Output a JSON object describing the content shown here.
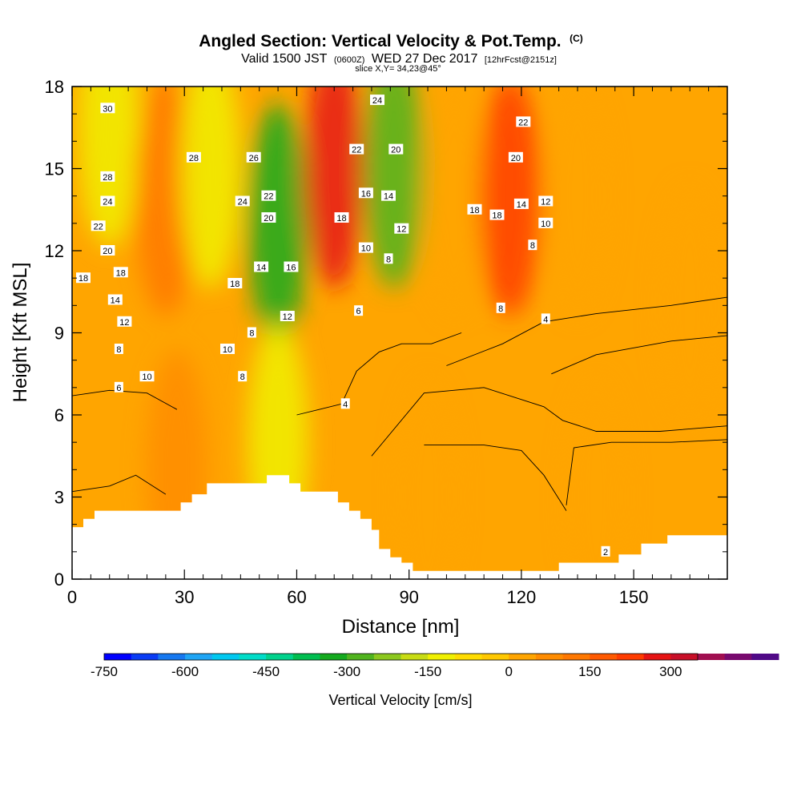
{
  "chart_data": {
    "type": "heatmap",
    "title": "Angled Section: Vertical Velocity & Pot.Temp.",
    "title_tag": "(C)",
    "subtitle": {
      "part1": "Valid 1500 JST",
      "part2": "(0600Z)",
      "part3": "WED 27 Dec 2017",
      "part4": "[12hrFcst@2151z]"
    },
    "slice_label": "slice X,Y= 34,23@45°",
    "xlabel": "Distance [nm]",
    "ylabel": "Height [Kft MSL]",
    "xlim": [
      0,
      175
    ],
    "ylim": [
      0,
      18
    ],
    "x_ticks": [
      "0",
      "30",
      "60",
      "90",
      "120",
      "150"
    ],
    "x_tick_values": [
      0,
      30,
      60,
      90,
      120,
      150
    ],
    "y_ticks": [
      "0",
      "3",
      "6",
      "9",
      "12",
      "15",
      "18"
    ],
    "y_tick_values": [
      0,
      3,
      6,
      9,
      12,
      15,
      18
    ],
    "grid": false,
    "colorbar": {
      "label": "Vertical Velocity [cm/s]",
      "min": -750,
      "max": 350,
      "step": 50,
      "tick_labels": [
        "-750",
        "-600",
        "-450",
        "-300",
        "-150",
        "0",
        "150",
        "300"
      ],
      "tick_values": [
        -750,
        -600,
        -450,
        -300,
        -150,
        0,
        150,
        300
      ],
      "colors": [
        "#0000ff",
        "#0a3cf5",
        "#1678f0",
        "#1fa5f5",
        "#00c8f0",
        "#00dcc8",
        "#00d28c",
        "#00be50",
        "#14aa1e",
        "#50b41e",
        "#8cc81e",
        "#c8dc14",
        "#f0f000",
        "#ffdc00",
        "#ffc800",
        "#ffa500",
        "#ff8c00",
        "#ff7800",
        "#ff5a00",
        "#ff3c00",
        "#e61414",
        "#c80f28",
        "#a00f50",
        "#780a6e",
        "#500a87"
      ]
    },
    "field": [
      {
        "x": 0,
        "y": 17,
        "w": 0
      },
      {
        "x": 10,
        "y": 16.5,
        "w": -150
      },
      {
        "x": 25,
        "y": 14,
        "w": 100
      },
      {
        "x": 37,
        "y": 15,
        "w": -150
      },
      {
        "x": 55,
        "y": 13,
        "w": -350
      },
      {
        "x": 70,
        "y": 15,
        "w": 250
      },
      {
        "x": 86,
        "y": 15,
        "w": -300
      },
      {
        "x": 102,
        "y": 14,
        "w": 0
      },
      {
        "x": 117,
        "y": 14,
        "w": 200
      },
      {
        "x": 135,
        "y": 14,
        "w": 0
      },
      {
        "x": 165,
        "y": 10,
        "w": 0
      },
      {
        "x": 28,
        "y": 4,
        "w": 50
      },
      {
        "x": 55,
        "y": 5,
        "w": -150
      },
      {
        "x": 95,
        "y": 3,
        "w": 0
      },
      {
        "x": 140,
        "y": 3,
        "w": 0
      }
    ],
    "terrain": [
      [
        0,
        1.9
      ],
      [
        3,
        1.9
      ],
      [
        3,
        2.2
      ],
      [
        6,
        2.2
      ],
      [
        6,
        2.5
      ],
      [
        29,
        2.5
      ],
      [
        29,
        2.8
      ],
      [
        32,
        2.8
      ],
      [
        32,
        3.1
      ],
      [
        36,
        3.1
      ],
      [
        36,
        3.5
      ],
      [
        52,
        3.5
      ],
      [
        52,
        3.8
      ],
      [
        58,
        3.8
      ],
      [
        58,
        3.5
      ],
      [
        61,
        3.5
      ],
      [
        61,
        3.2
      ],
      [
        71,
        3.2
      ],
      [
        71,
        2.8
      ],
      [
        74,
        2.8
      ],
      [
        74,
        2.5
      ],
      [
        77,
        2.5
      ],
      [
        77,
        2.2
      ],
      [
        80,
        2.2
      ],
      [
        80,
        1.8
      ],
      [
        82,
        1.8
      ],
      [
        82,
        1.1
      ],
      [
        85,
        1.1
      ],
      [
        85,
        0.8
      ],
      [
        88,
        0.8
      ],
      [
        88,
        0.6
      ],
      [
        91,
        0.6
      ],
      [
        91,
        0.3
      ],
      [
        130,
        0.3
      ],
      [
        130,
        0.6
      ],
      [
        146,
        0.6
      ],
      [
        146,
        0.9
      ],
      [
        152,
        0.9
      ],
      [
        152,
        1.3
      ],
      [
        159,
        1.3
      ],
      [
        159,
        1.6
      ],
      [
        175,
        1.6
      ],
      [
        175,
        0
      ],
      [
        0,
        0
      ]
    ],
    "theta_contour_labels": [
      {
        "text": "30",
        "x": 9.5,
        "y": 17.2
      },
      {
        "text": "28",
        "x": 32.5,
        "y": 15.4
      },
      {
        "text": "26",
        "x": 48.5,
        "y": 15.4
      },
      {
        "text": "28",
        "x": 9.5,
        "y": 14.7
      },
      {
        "text": "24",
        "x": 9.5,
        "y": 13.8
      },
      {
        "text": "22",
        "x": 7,
        "y": 12.9
      },
      {
        "text": "20",
        "x": 9.5,
        "y": 12
      },
      {
        "text": "18",
        "x": 3,
        "y": 11
      },
      {
        "text": "18",
        "x": 13,
        "y": 11.2
      },
      {
        "text": "14",
        "x": 11.5,
        "y": 10.2
      },
      {
        "text": "12",
        "x": 14,
        "y": 9.4
      },
      {
        "text": "8",
        "x": 12.5,
        "y": 8.4
      },
      {
        "text": "10",
        "x": 20,
        "y": 7.4
      },
      {
        "text": "6",
        "x": 12.5,
        "y": 7
      },
      {
        "text": "24",
        "x": 45.5,
        "y": 13.8
      },
      {
        "text": "22",
        "x": 52.5,
        "y": 14
      },
      {
        "text": "20",
        "x": 52.5,
        "y": 13.2
      },
      {
        "text": "18",
        "x": 43.5,
        "y": 10.8
      },
      {
        "text": "14",
        "x": 50.5,
        "y": 11.4
      },
      {
        "text": "16",
        "x": 58.5,
        "y": 11.4
      },
      {
        "text": "12",
        "x": 57.5,
        "y": 9.6
      },
      {
        "text": "8",
        "x": 48,
        "y": 9
      },
      {
        "text": "10",
        "x": 41.5,
        "y": 8.4
      },
      {
        "text": "8",
        "x": 45.5,
        "y": 7.4
      },
      {
        "text": "24",
        "x": 81.5,
        "y": 17.5
      },
      {
        "text": "22",
        "x": 76,
        "y": 15.7
      },
      {
        "text": "20",
        "x": 86.5,
        "y": 15.7
      },
      {
        "text": "16",
        "x": 78.5,
        "y": 14.1
      },
      {
        "text": "14",
        "x": 84.5,
        "y": 14
      },
      {
        "text": "18",
        "x": 72,
        "y": 13.2
      },
      {
        "text": "12",
        "x": 88,
        "y": 12.8
      },
      {
        "text": "10",
        "x": 78.5,
        "y": 12.1
      },
      {
        "text": "8",
        "x": 84.5,
        "y": 11.7
      },
      {
        "text": "6",
        "x": 76.5,
        "y": 9.8
      },
      {
        "text": "4",
        "x": 73,
        "y": 6.4
      },
      {
        "text": "22",
        "x": 120.5,
        "y": 16.7
      },
      {
        "text": "20",
        "x": 118.5,
        "y": 15.4
      },
      {
        "text": "18",
        "x": 107.5,
        "y": 13.5
      },
      {
        "text": "18",
        "x": 113.5,
        "y": 13.3
      },
      {
        "text": "14",
        "x": 120,
        "y": 13.7
      },
      {
        "text": "12",
        "x": 126.5,
        "y": 13.8
      },
      {
        "text": "10",
        "x": 126.5,
        "y": 13
      },
      {
        "text": "8",
        "x": 123,
        "y": 12.2
      },
      {
        "text": "8",
        "x": 114.5,
        "y": 9.9
      },
      {
        "text": "4",
        "x": 126.5,
        "y": 9.5
      },
      {
        "text": "2",
        "x": 142.5,
        "y": 1
      }
    ],
    "theta_contours": [
      {
        "level": 0,
        "pts": [
          [
            0,
            6.7
          ],
          [
            10,
            6.9
          ],
          [
            20,
            6.8
          ],
          [
            28,
            6.2
          ]
        ]
      },
      {
        "level": 0,
        "pts": [
          [
            0,
            3.2
          ],
          [
            10,
            3.4
          ],
          [
            17,
            3.8
          ],
          [
            25,
            3.1
          ]
        ]
      },
      {
        "level": 0,
        "pts": [
          [
            80,
            4.5
          ],
          [
            94,
            6.8
          ],
          [
            110,
            7.0
          ],
          [
            126,
            6.3
          ],
          [
            131,
            5.8
          ],
          [
            140,
            5.4
          ],
          [
            157,
            5.4
          ],
          [
            175,
            5.6
          ]
        ]
      },
      {
        "level": 0,
        "pts": [
          [
            94,
            4.9
          ],
          [
            110,
            4.9
          ],
          [
            120,
            4.7
          ],
          [
            126,
            3.8
          ],
          [
            132,
            2.5
          ]
        ]
      },
      {
        "level": 0,
        "pts": [
          [
            132,
            2.7
          ],
          [
            134,
            4.8
          ],
          [
            144,
            5.0
          ],
          [
            160,
            5.0
          ],
          [
            175,
            5.1
          ]
        ]
      },
      {
        "level": 0,
        "pts": [
          [
            128,
            7.5
          ],
          [
            140,
            8.2
          ],
          [
            160,
            8.7
          ],
          [
            175,
            8.9
          ]
        ]
      },
      {
        "level": 0,
        "pts": [
          [
            100,
            7.8
          ],
          [
            115,
            8.6
          ],
          [
            126,
            9.4
          ],
          [
            140,
            9.7
          ],
          [
            160,
            10.0
          ],
          [
            175,
            10.3
          ]
        ]
      },
      {
        "level": 0,
        "pts": [
          [
            60,
            6.0
          ],
          [
            66,
            6.2
          ],
          [
            72,
            6.4
          ],
          [
            76,
            7.6
          ],
          [
            82,
            8.3
          ],
          [
            88,
            8.6
          ],
          [
            96,
            8.6
          ],
          [
            104,
            9.0
          ]
        ]
      },
      {
        "level": 0,
        "pts": [
          [
            75,
            0.2
          ],
          [
            80,
            1.2
          ]
        ]
      }
    ]
  }
}
